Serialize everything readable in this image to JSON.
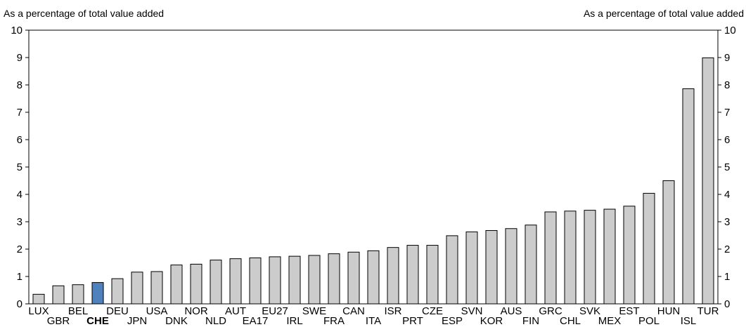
{
  "chart_data": {
    "type": "bar",
    "title": "",
    "ylabel_left": "As a percentage of total value added",
    "ylabel_right": "As a percentage of total value added",
    "ylim": [
      0,
      10
    ],
    "yticks": [
      "0",
      "1",
      "2",
      "3",
      "4",
      "5",
      "6",
      "7",
      "8",
      "9",
      "10"
    ],
    "grid": false,
    "highlight_category": "CHE",
    "colors": {
      "bar": "#cccccc",
      "highlight": "#4f81bd",
      "outline": "#000000"
    },
    "categories": [
      "LUX",
      "GBR",
      "BEL",
      "CHE",
      "DEU",
      "JPN",
      "USA",
      "DNK",
      "NOR",
      "NLD",
      "AUT",
      "EA17",
      "EU27",
      "IRL",
      "SWE",
      "FRA",
      "CAN",
      "ITA",
      "ISR",
      "PRT",
      "CZE",
      "ESP",
      "SVN",
      "KOR",
      "AUS",
      "FIN",
      "GRC",
      "CHL",
      "SVK",
      "MEX",
      "EST",
      "POL",
      "HUN",
      "ISL",
      "TUR"
    ],
    "values": [
      0.35,
      0.66,
      0.7,
      0.78,
      0.92,
      1.16,
      1.18,
      1.42,
      1.45,
      1.6,
      1.65,
      1.68,
      1.72,
      1.74,
      1.77,
      1.83,
      1.89,
      1.94,
      2.06,
      2.14,
      2.14,
      2.49,
      2.63,
      2.68,
      2.75,
      2.88,
      3.36,
      3.39,
      3.42,
      3.46,
      3.57,
      4.04,
      4.5,
      7.86,
      8.99
    ]
  }
}
